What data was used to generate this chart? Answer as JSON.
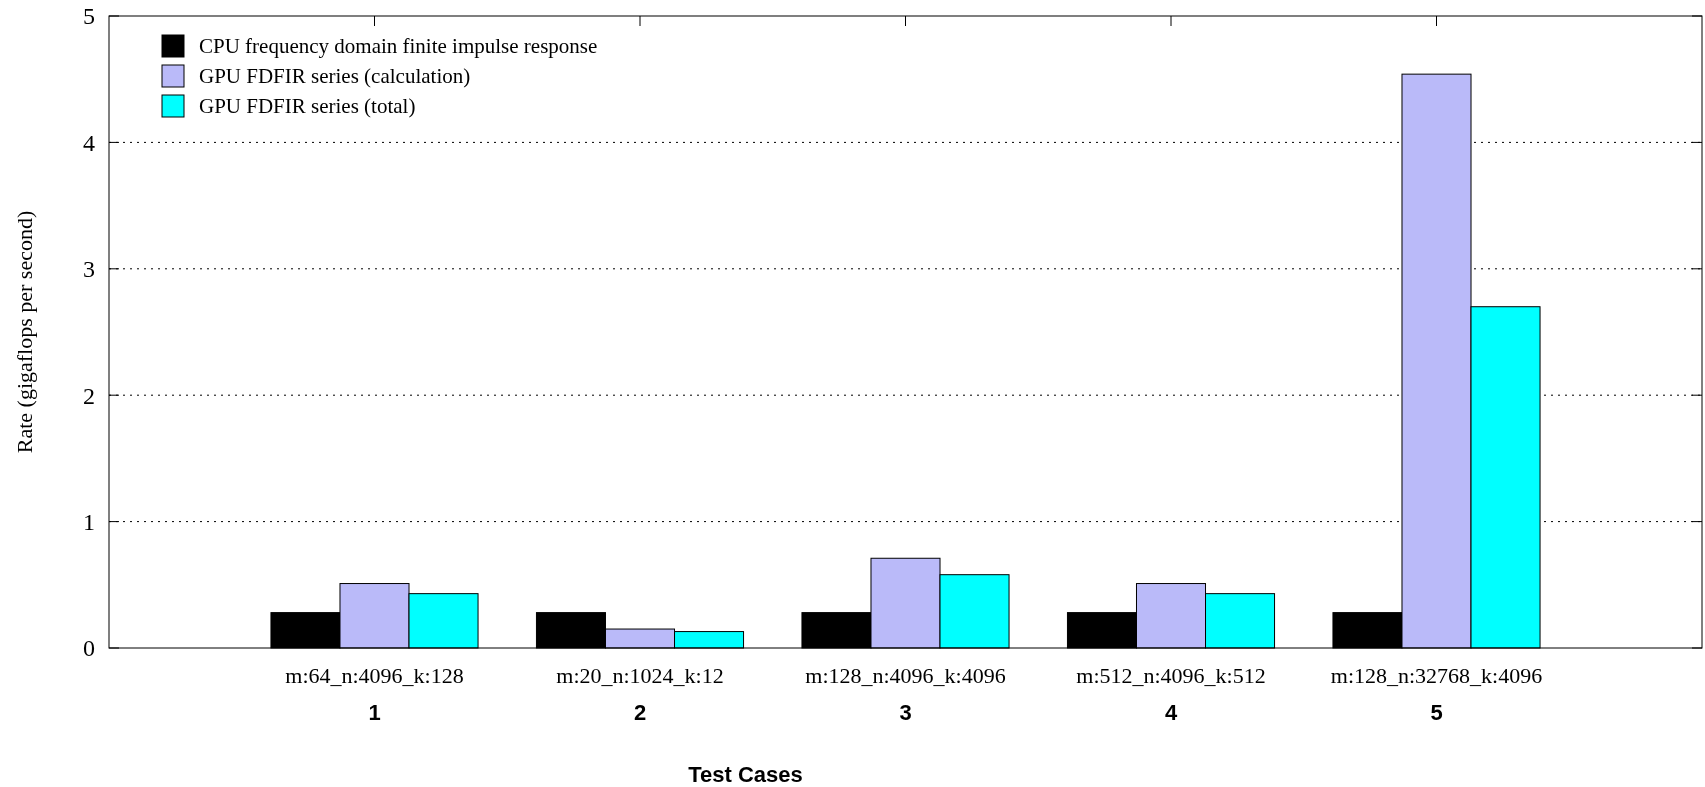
{
  "chart_data": {
    "type": "bar",
    "xlabel": "Test Cases",
    "ylabel": "Rate (gigaflops per second)",
    "categories": [
      "1",
      "2",
      "3",
      "4",
      "5"
    ],
    "series": [
      {
        "name": "CPU frequency domain finite impulse response",
        "color": "#000000",
        "values": [
          0.28,
          0.28,
          0.28,
          0.28,
          0.28
        ]
      },
      {
        "name": "GPU FDFIR series (calculation)",
        "color": "#babaf9",
        "values": [
          0.51,
          0.15,
          0.71,
          0.51,
          4.54
        ]
      },
      {
        "name": "GPU FDFIR series (total)",
        "color": "#00ffff",
        "values": [
          0.43,
          0.13,
          0.58,
          0.43,
          2.7
        ]
      }
    ],
    "annotations": [
      "m:64_n:4096_k:128",
      "m:20_n:1024_k:12",
      "m:128_n:4096_k:4096",
      "m:512_n:4096_k:512",
      "m:128_n:32768_k:4096"
    ],
    "ylim": [
      0,
      5
    ],
    "yticks": [
      0,
      1,
      2,
      3,
      4,
      5
    ],
    "grid": "y",
    "legend": "top left"
  }
}
